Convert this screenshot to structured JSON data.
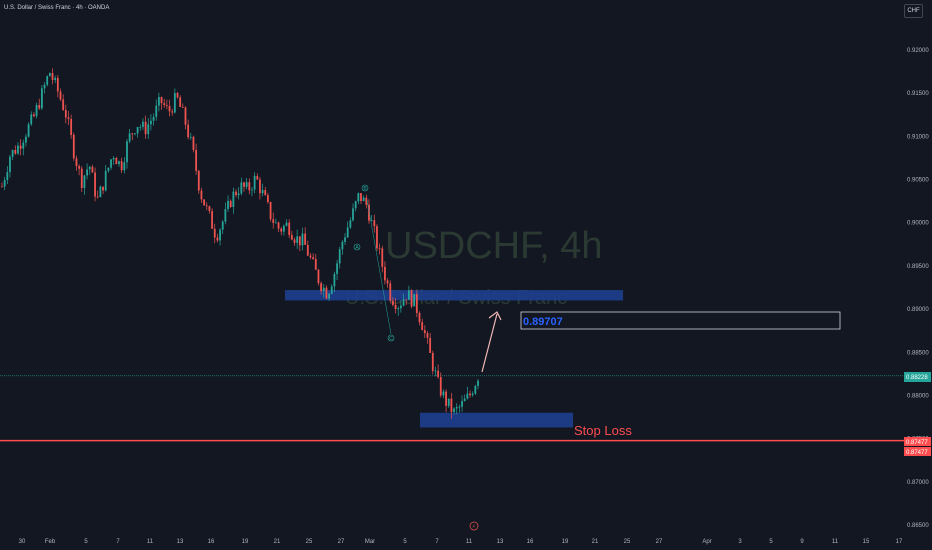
{
  "header": {
    "title": "U.S. Dollar / Swiss Franc · 4h · OANDA",
    "currency": "CHF"
  },
  "watermark": {
    "symbol": "USDCHF, 4h",
    "name": "U.S. Dollar / Swiss Franc"
  },
  "colors": {
    "background": "#131722",
    "up": "#26a69a",
    "down": "#ef5350",
    "zone": "#1e3f8f",
    "stop_line": "#ff4d4f",
    "current_price": "#26a69a",
    "target_box": "#d1d4dc",
    "arrow": "#f0b8b5"
  },
  "annotations": {
    "target_label": "0.89707",
    "stop_loss_label": "Stop Loss",
    "current_price_tag": "0.88228",
    "stop_tag_1": "0.87477",
    "stop_tag_2": "0.87477",
    "waves": [
      "A",
      "B",
      "C"
    ],
    "event_icon": "flash-icon"
  },
  "chart_data": {
    "type": "candlestick",
    "symbol": "USDCHF",
    "timeframe": "4h",
    "ylim": [
      0.865,
      0.922
    ],
    "y_ticks": [
      "0.92000",
      "0.91500",
      "0.91000",
      "0.90500",
      "0.90000",
      "0.89500",
      "0.89000",
      "0.88500",
      "0.88000",
      "0.87500",
      "0.87000",
      "0.86500"
    ],
    "x_ticks": [
      "30",
      "Feb",
      "5",
      "7",
      "11",
      "13",
      "16",
      "19",
      "21",
      "25",
      "27",
      "Mar",
      "5",
      "7",
      "11",
      "13",
      "16",
      "19",
      "21",
      "25",
      "27",
      "Apr",
      "3",
      "5",
      "9",
      "11",
      "15",
      "17"
    ],
    "close_path": [
      0.9042,
      0.9078,
      0.9088,
      0.9105,
      0.9122,
      0.9148,
      0.9175,
      0.9153,
      0.9128,
      0.9085,
      0.9048,
      0.9068,
      0.9025,
      0.9052,
      0.9081,
      0.9065,
      0.9098,
      0.9115,
      0.9108,
      0.9122,
      0.9141,
      0.9128,
      0.9145,
      0.912,
      0.9085,
      0.9035,
      0.901,
      0.8985,
      0.9005,
      0.903,
      0.9042,
      0.9038,
      0.9052,
      0.903,
      0.9005,
      0.8992,
      0.8998,
      0.8982,
      0.8978,
      0.8955,
      0.8932,
      0.8918,
      0.8945,
      0.8982,
      0.9005,
      0.9032,
      0.902,
      0.8985,
      0.8948,
      0.8915,
      0.8905,
      0.8918,
      0.8908,
      0.8882,
      0.8845,
      0.8812,
      0.8792,
      0.878,
      0.8789,
      0.8801,
      0.8823
    ],
    "stop_loss": 0.87477,
    "current_price": 0.88228,
    "target": 0.89707,
    "resistance_zone": [
      0.891,
      0.8922
    ],
    "support_zone": [
      0.8763,
      0.878
    ]
  }
}
